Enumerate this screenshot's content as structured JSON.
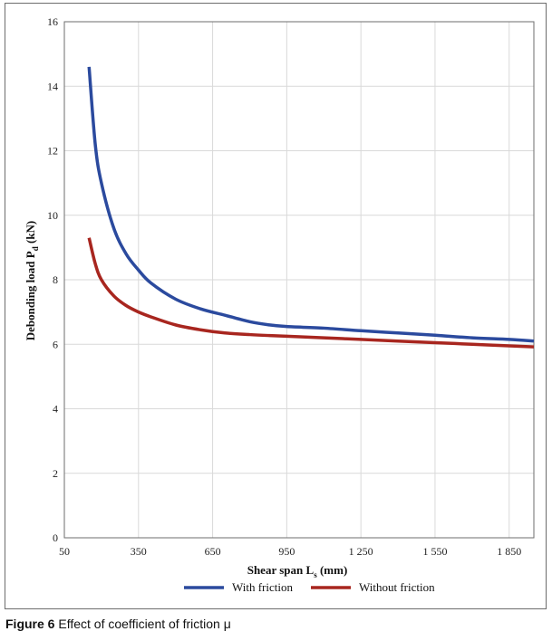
{
  "chart_data": {
    "type": "line",
    "xlabel": "Shear span L",
    "xlabel_sub": "s",
    "xlabel_unit": " (mm)",
    "ylabel": "Debonding load P",
    "ylabel_sub": "d",
    "ylabel_unit": " (kN)",
    "xlim": [
      50,
      1950
    ],
    "ylim": [
      0,
      16
    ],
    "x_ticks": [
      50,
      350,
      650,
      950,
      1250,
      1550,
      1850
    ],
    "x_tick_labels": [
      "50",
      "350",
      "650",
      "950",
      "1 250",
      "1 550",
      "1 850"
    ],
    "y_ticks": [
      0,
      2,
      4,
      6,
      8,
      10,
      12,
      14,
      16
    ],
    "y_tick_labels": [
      "0",
      "2",
      "4",
      "6",
      "8",
      "10",
      "12",
      "14",
      "16"
    ],
    "grid": true,
    "legend_position": "bottom-center",
    "series": [
      {
        "name": "With friction",
        "color": "#2b4a9e",
        "x": [
          150,
          175,
          200,
          250,
          300,
          350,
          400,
          500,
          600,
          700,
          800,
          880,
          950,
          1100,
          1250,
          1400,
          1550,
          1700,
          1850,
          1950
        ],
        "values": [
          14.6,
          12.2,
          11.0,
          9.6,
          8.8,
          8.3,
          7.9,
          7.4,
          7.1,
          6.9,
          6.7,
          6.6,
          6.55,
          6.5,
          6.42,
          6.35,
          6.28,
          6.2,
          6.15,
          6.1
        ]
      },
      {
        "name": "Without friction",
        "color": "#a8261f",
        "x": [
          150,
          175,
          200,
          250,
          300,
          350,
          400,
          500,
          600,
          700,
          800,
          880,
          950,
          1100,
          1250,
          1400,
          1550,
          1700,
          1850,
          1950
        ],
        "values": [
          9.3,
          8.5,
          8.0,
          7.5,
          7.2,
          7.0,
          6.85,
          6.6,
          6.45,
          6.35,
          6.3,
          6.27,
          6.25,
          6.2,
          6.15,
          6.1,
          6.05,
          6.0,
          5.95,
          5.92
        ]
      }
    ]
  },
  "caption": {
    "number": "Figure 6",
    "text": " Effect of coefficient of friction μ"
  }
}
